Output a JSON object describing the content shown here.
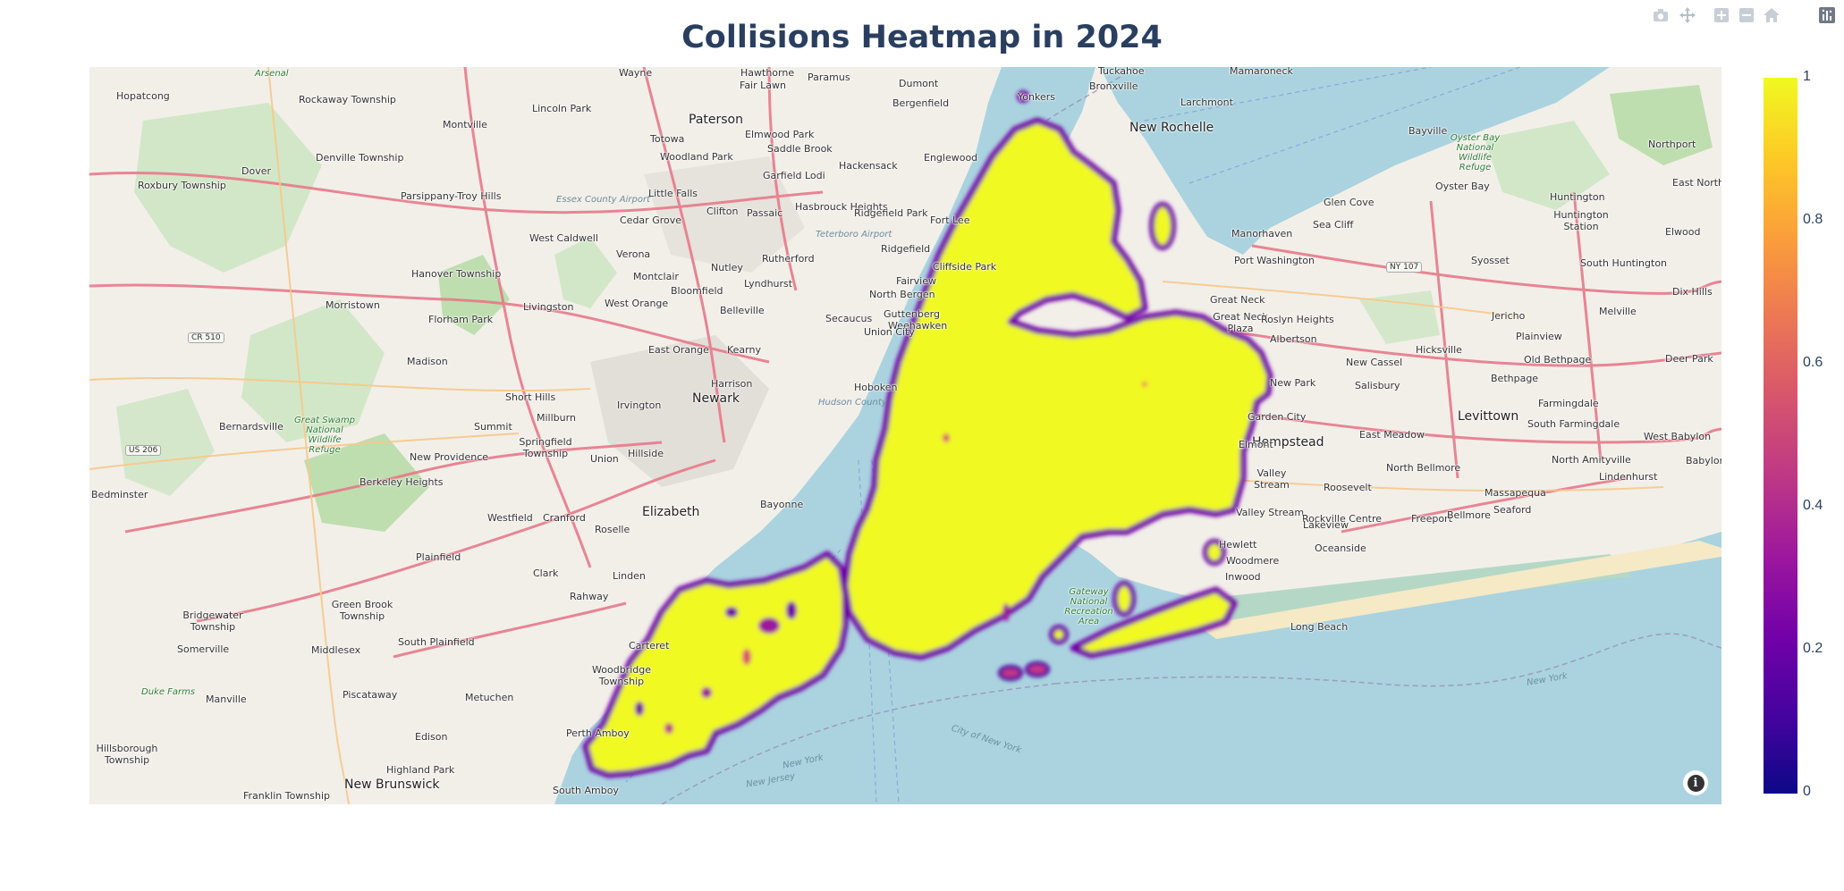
{
  "title": "Collisions Heatmap in 2024",
  "modebar": {
    "icons": [
      "camera-icon",
      "pan-icon",
      "zoom-in-icon",
      "zoom-out-icon",
      "home-icon",
      "plotly-logo-icon"
    ]
  },
  "colorbar": {
    "ticks": [
      "1",
      "0.8",
      "0.6",
      "0.4",
      "0.2",
      "0"
    ],
    "colorscale": [
      "#0d0887",
      "#46039f",
      "#7201a8",
      "#9c179e",
      "#bd3786",
      "#d8576b",
      "#ed7953",
      "#fb9f3a",
      "#fdca26",
      "#f0f921"
    ]
  },
  "colors": {
    "water": "#aad3df",
    "land": "#f2efe9",
    "heat_fill": "#f0f921",
    "heat_edge": "#7201a8",
    "road": "#e8798a"
  },
  "map": {
    "labels": {
      "hopatcong": "Hopatcong",
      "arsenal": "Arsenal",
      "rockaway": "Rockaway Township",
      "wayne": "Wayne",
      "hawthorne": "Hawthorne",
      "fairlawn": "Fair Lawn",
      "paramus": "Paramus",
      "dumont": "Dumont",
      "tuckahoe": "Tuckahoe",
      "bronxville": "Bronxville",
      "mamaroneck": "Mamaroneck",
      "yonkers": "Yonkers",
      "larchmont": "Larchmont",
      "newrochelle": "New Rochelle",
      "bergenfield": "Bergenfield",
      "lincolnpark": "Lincoln Park",
      "montville": "Montville",
      "paterson": "Paterson",
      "elmwoodpark": "Elmwood Park",
      "totowa": "Totowa",
      "saddlebrook": "Saddle Brook",
      "englewood": "Englewood",
      "woodlandpark": "Woodland Park",
      "hackensack": "Hackensack",
      "roxbury": "Roxbury Township",
      "denville": "Denville Township",
      "dover": "Dover",
      "parsippany": "Parsippany-Troy Hills",
      "garfield": "Garfield",
      "lodi": "Lodi",
      "littlefalls": "Little Falls",
      "clifton": "Clifton",
      "passaic": "Passaic",
      "hasbrouck": "Hasbrouck Heights",
      "ridgefieldpark": "Ridgefield Park",
      "fortlee": "Fort Lee",
      "essexairport": "Essex County Airport",
      "cedargrove": "Cedar Grove",
      "westcaldwell": "West Caldwell",
      "verona": "Verona",
      "teterboro": "Teterboro Airport",
      "rutherford": "Rutherford",
      "ridgefield": "Ridgefield",
      "cliffside": "Cliffside Park",
      "montclair": "Montclair",
      "nutley": "Nutley",
      "fairview": "Fairview",
      "northbergen": "North Bergen",
      "hanover": "Hanover Township",
      "bloomfield": "Bloomfield",
      "lyndhurst": "Lyndhurst",
      "morristown": "Morristown",
      "florhampark": "Florham Park",
      "livingston": "Livingston",
      "westorange": "West Orange",
      "belleville": "Belleville",
      "secaucus": "Secaucus",
      "guttenberg": "Guttenberg",
      "weehawken": "Weehawken",
      "unioncity": "Union City",
      "cr510": "CR 510",
      "eastorange": "East Orange",
      "kearny": "Kearny",
      "madison": "Madison",
      "harrison": "Harrison",
      "hoboken": "Hoboken",
      "shorthills": "Short Hills",
      "newark": "Newark",
      "hudson": "Hudson County",
      "irvington": "Irvington",
      "millburn": "Millburn",
      "bernardsville": "Bernardsville",
      "greatswamp": "Great Swamp National Wildlife Refuge",
      "summit": "Summit",
      "springfield": "Springfield Township",
      "us206": "US 206",
      "newprovidence": "New Providence",
      "union": "Union",
      "hillside": "Hillside",
      "berkeleyheights": "Berkeley Heights",
      "bedminster": "Bedminster",
      "bayonne": "Bayonne",
      "elizabeth": "Elizabeth",
      "westfield": "Westfield",
      "cranford": "Cranford",
      "roselle": "Roselle",
      "plainfield": "Plainfield",
      "clark": "Clark",
      "linden": "Linden",
      "rahway": "Rahway",
      "greenbrook": "Green Brook Township",
      "bridgewater": "Bridgewater Township",
      "somerville": "Somerville",
      "middlesex": "Middlesex",
      "southplainfield": "South Plainfield",
      "carteret": "Carteret",
      "woodbridge": "Woodbridge Township",
      "dukefarms": "Duke Farms",
      "manville": "Manville",
      "piscataway": "Piscataway",
      "metuchen": "Metuchen",
      "edison": "Edison",
      "perthamboy": "Perth Amboy",
      "hillsborough": "Hillsborough Township",
      "highlandpark": "Highland Park",
      "newbrunswick": "New Brunswick",
      "franklin": "Franklin Township",
      "southamboy": "South Amboy",
      "bayville": "Bayville",
      "oysterbayrefuge": "Oyster Bay National Wildlife Refuge",
      "northport": "Northport",
      "oysterbay": "Oyster Bay",
      "eastnorthport": "East Northport",
      "glencove": "Glen Cove",
      "huntington": "Huntington",
      "huntingtonstation": "Huntington Station",
      "manorhaven": "Manorhaven",
      "seacliff": "Sea Cliff",
      "elwood": "Elwood",
      "portwashington": "Port Washington",
      "ny107": "NY 107",
      "syosset": "Syosset",
      "southhuntington": "South Huntington",
      "greatneck": "Great Neck",
      "dixhills": "Dix Hills",
      "greatneckplaza": "Great Neck Plaza",
      "roslynheights": "Roslyn Heights",
      "albertson": "Albertson",
      "jericho": "Jericho",
      "melville": "Melville",
      "plainview": "Plainview",
      "hicksville": "Hicksville",
      "oldbethpage": "Old Bethpage",
      "deerpark": "Deer Park",
      "newcassel": "New Cassel",
      "salisbury": "Salisbury",
      "bethpage": "Bethpage",
      "newpark": "New Park",
      "gardencity": "Garden City",
      "levittown": "Levittown",
      "farmingdale": "Farmingdale",
      "eastmeadow": "East Meadow",
      "southfarmingdale": "South Farmingdale",
      "hempstead": "Hempstead",
      "westbabylon": "West Babylon",
      "elmont": "Elmont",
      "northbellmore": "North Bellmore",
      "northamityville": "North Amityville",
      "babylon": "Babylon",
      "valleystream": "Valley Stream",
      "roosevelt": "Roosevelt",
      "massapequa": "Massapequa",
      "lindenhurst": "Lindenhurst",
      "valleystream2": "Valley Stream",
      "rockvillecentre": "Rockville Centre",
      "freeport": "Freeport",
      "bellmore": "Bellmore",
      "seaford": "Seaford",
      "hewlett": "Hewlett",
      "oceanside": "Oceanside",
      "woodmere": "Woodmere",
      "inwood": "Inwood",
      "gateway": "Gateway National Recreation Area",
      "longbeach": "Long Beach",
      "newyork": "New York",
      "newjersey": "New Jersey",
      "cityofny": "City of New York",
      "newyorkbay": "New York",
      "newjerseybay": "New Jersey",
      "lakeview": "Lakeview",
      "newyork2": "New York",
      "bayonnebay": "New Jersey"
    }
  }
}
